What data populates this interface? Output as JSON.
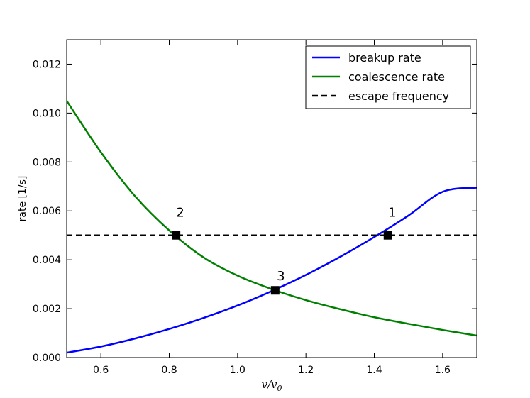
{
  "chart_data": {
    "type": "line",
    "title": "",
    "xlabel": "v/v",
    "xlabel_subscript": "0",
    "ylabel": "rate [1/s]",
    "xlim": [
      0.5,
      1.7
    ],
    "ylim": [
      0.0,
      0.013
    ],
    "x_ticks": [
      0.6,
      0.8,
      1.0,
      1.2,
      1.4,
      1.6
    ],
    "x_tick_labels": [
      "0.6",
      "0.8",
      "1.0",
      "1.2",
      "1.4",
      "1.6"
    ],
    "y_ticks": [
      0.0,
      0.002,
      0.004,
      0.006,
      0.008,
      0.01,
      0.012
    ],
    "y_tick_labels": [
      "0.000",
      "0.002",
      "0.004",
      "0.006",
      "0.008",
      "0.010",
      "0.012"
    ],
    "grid": false,
    "legend_position": "top-right",
    "series": [
      {
        "name": "breakup rate",
        "color": "#0000ff",
        "style": "solid",
        "x": [
          0.5,
          0.6,
          0.7,
          0.8,
          0.9,
          1.0,
          1.1,
          1.2,
          1.3,
          1.4,
          1.5,
          1.6,
          1.7
        ],
        "values": [
          0.0002,
          0.00045,
          0.00078,
          0.00117,
          0.00162,
          0.00213,
          0.00272,
          0.00338,
          0.00412,
          0.00493,
          0.00581,
          0.00678,
          0.00695
        ]
      },
      {
        "name": "coalescence rate",
        "color": "#008000",
        "style": "solid",
        "x": [
          0.5,
          0.6,
          0.7,
          0.8,
          0.9,
          1.0,
          1.1,
          1.2,
          1.3,
          1.4,
          1.5,
          1.6,
          1.7
        ],
        "values": [
          0.0105,
          0.0084,
          0.0066,
          0.0052,
          0.0041,
          0.00335,
          0.0028,
          0.00235,
          0.00198,
          0.00165,
          0.00138,
          0.00113,
          0.0009
        ]
      },
      {
        "name": "escape frequency",
        "color": "#000000",
        "style": "dashed",
        "x": [
          0.5,
          1.7
        ],
        "values": [
          0.005,
          0.005
        ]
      }
    ],
    "markers": [
      {
        "label": "1",
        "x": 1.44,
        "y": 0.005
      },
      {
        "label": "2",
        "x": 0.82,
        "y": 0.005
      },
      {
        "label": "3",
        "x": 1.11,
        "y": 0.00275
      }
    ]
  }
}
